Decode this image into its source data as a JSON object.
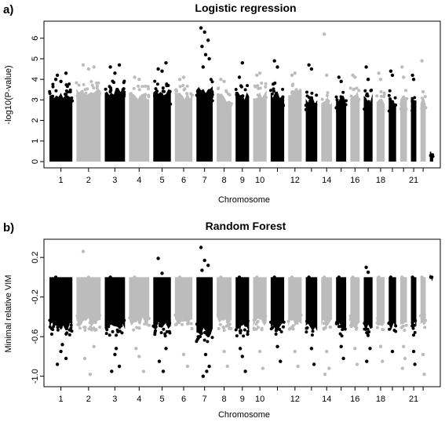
{
  "chart_data": [
    {
      "panel_label": "a)",
      "title": "Logistic regression",
      "type": "scatter",
      "xlabel": "Chromosome",
      "ylabel": "-log10(P-value)",
      "ylim": [
        0,
        6.6
      ],
      "yticks": [
        0,
        1,
        2,
        3,
        4,
        5,
        6
      ],
      "ytick_labels": [
        "0",
        "1",
        "2",
        "3",
        "4",
        "5",
        "6"
      ],
      "xtick_labels": [
        "1",
        "2",
        "3",
        "4",
        "5",
        "6",
        "7",
        "8",
        "9",
        "10",
        "12",
        "14",
        "16",
        "18",
        "21"
      ],
      "grid": false,
      "legend": "none",
      "baseline": 0,
      "colors": {
        "odd_chromosome": "#000000",
        "even_chromosome": "#bcbcbc"
      },
      "chromosomes": [
        {
          "chr": 1,
          "bulk": 3.3,
          "top": [
            4.0,
            3.9,
            4.3,
            4.2
          ]
        },
        {
          "chr": 2,
          "bulk": 3.4,
          "top": [
            4.7,
            4.5,
            4.6
          ]
        },
        {
          "chr": 3,
          "bulk": 3.4,
          "top": [
            4.6,
            4.3,
            4.7
          ]
        },
        {
          "chr": 4,
          "bulk": 3.2,
          "top": [
            4.1,
            4.0
          ]
        },
        {
          "chr": 5,
          "bulk": 3.4,
          "top": [
            4.5,
            4.4,
            4.8
          ]
        },
        {
          "chr": 6,
          "bulk": 3.2,
          "top": [
            4.0,
            4.1
          ]
        },
        {
          "chr": 7,
          "bulk": 3.5,
          "top": [
            6.5,
            6.3,
            5.9,
            5.6,
            5.2,
            5.0,
            4.6
          ]
        },
        {
          "chr": 8,
          "bulk": 3.1,
          "top": [
            4.0,
            3.9
          ]
        },
        {
          "chr": 9,
          "bulk": 3.2,
          "top": [
            4.1,
            4.8
          ]
        },
        {
          "chr": 10,
          "bulk": 3.3,
          "top": [
            4.2,
            4.3
          ]
        },
        {
          "chr": 11,
          "bulk": 3.3,
          "top": [
            4.9,
            4.6
          ]
        },
        {
          "chr": 12,
          "bulk": 3.4,
          "top": [
            4.2,
            4.3
          ]
        },
        {
          "chr": 13,
          "bulk": 3.0,
          "top": [
            4.7,
            4.5
          ]
        },
        {
          "chr": 14,
          "bulk": 3.0,
          "top": [
            6.2,
            4.2
          ]
        },
        {
          "chr": 15,
          "bulk": 3.0,
          "top": [
            4.1,
            3.9
          ]
        },
        {
          "chr": 16,
          "bulk": 3.2,
          "top": [
            4.2,
            4.1
          ]
        },
        {
          "chr": 17,
          "bulk": 3.1,
          "top": [
            4.6,
            4.0
          ]
        },
        {
          "chr": 18,
          "bulk": 3.0,
          "top": [
            4.3,
            4.0
          ]
        },
        {
          "chr": 19,
          "bulk": 3.0,
          "top": [
            4.4,
            4.2
          ]
        },
        {
          "chr": 20,
          "bulk": 3.1,
          "top": [
            4.6,
            4.1
          ]
        },
        {
          "chr": 21,
          "bulk": 3.0,
          "top": [
            4.2,
            4.0
          ]
        },
        {
          "chr": 22,
          "bulk": 2.9,
          "top": [
            4.9,
            3.4
          ]
        },
        {
          "chr": 23,
          "bulk": 0.3,
          "top": []
        }
      ]
    },
    {
      "panel_label": "b)",
      "title": "Random Forest",
      "type": "scatter",
      "xlabel": "Chromosome",
      "ylabel": "Minimal relative VIM",
      "ylim": [
        -1.05,
        0.32
      ],
      "yticks": [
        0.2,
        -0.2,
        -0.6,
        -1.0
      ],
      "ytick_labels": [
        "0.2",
        "-0.2",
        "-0.6",
        "-1.0"
      ],
      "xtick_labels": [
        "1",
        "2",
        "3",
        "4",
        "5",
        "6",
        "7",
        "8",
        "9",
        "10",
        "12",
        "14",
        "16",
        "18",
        "21"
      ],
      "grid": false,
      "legend": "none",
      "baseline": 0,
      "colors": {
        "odd_chromosome": "#000000",
        "even_chromosome": "#bcbcbc"
      },
      "chromosomes": [
        {
          "chr": 1,
          "bulk": -0.5,
          "top": [
            0.0
          ],
          "outliers": [
            -0.75,
            -0.82,
            -0.88,
            -0.68
          ]
        },
        {
          "chr": 2,
          "bulk": -0.45,
          "top": [
            0.26,
            0.0
          ],
          "outliers": [
            -0.7,
            -0.82,
            -0.98
          ]
        },
        {
          "chr": 3,
          "bulk": -0.5,
          "top": [
            0.0
          ],
          "outliers": [
            -0.78,
            -0.9,
            -0.95,
            -0.72
          ]
        },
        {
          "chr": 4,
          "bulk": -0.45,
          "top": [
            0.0
          ],
          "outliers": [
            -0.8,
            -0.95,
            -0.72
          ]
        },
        {
          "chr": 5,
          "bulk": -0.5,
          "top": [
            0.19,
            0.04
          ],
          "outliers": [
            -0.72,
            -0.85,
            -0.95
          ]
        },
        {
          "chr": 6,
          "bulk": -0.45,
          "top": [
            0.0
          ],
          "outliers": [
            -0.78,
            -0.9
          ]
        },
        {
          "chr": 7,
          "bulk": -0.55,
          "top": [
            0.3,
            0.17,
            0.12,
            0.07
          ],
          "outliers": [
            -0.78,
            -0.9,
            -1.0,
            -0.95
          ]
        },
        {
          "chr": 8,
          "bulk": -0.45,
          "top": [
            0.0
          ],
          "outliers": [
            -0.75,
            -0.9
          ]
        },
        {
          "chr": 9,
          "bulk": -0.5,
          "top": [
            0.0
          ],
          "outliers": [
            -0.8,
            -0.95,
            -0.72
          ]
        },
        {
          "chr": 10,
          "bulk": -0.45,
          "top": [
            0.0
          ],
          "outliers": [
            -0.75,
            -0.92
          ]
        },
        {
          "chr": 11,
          "bulk": -0.5,
          "top": [
            0.0
          ],
          "outliers": [
            -0.7,
            -0.85
          ]
        },
        {
          "chr": 12,
          "bulk": -0.45,
          "top": [
            0.0
          ],
          "outliers": [
            -0.75,
            -0.9
          ]
        },
        {
          "chr": 13,
          "bulk": -0.5,
          "top": [
            0.0
          ],
          "outliers": [
            -0.72,
            -0.88
          ]
        },
        {
          "chr": 14,
          "bulk": -0.45,
          "top": [
            0.0
          ],
          "outliers": [
            -0.75,
            -0.92,
            -0.98
          ]
        },
        {
          "chr": 15,
          "bulk": -0.5,
          "top": [
            0.0
          ],
          "outliers": [
            -0.7,
            -0.82
          ]
        },
        {
          "chr": 16,
          "bulk": -0.45,
          "top": [
            0.0
          ],
          "outliers": [
            -0.72,
            -0.88
          ]
        },
        {
          "chr": 17,
          "bulk": -0.5,
          "top": [
            0.1,
            0.05
          ],
          "outliers": [
            -0.72,
            -0.85
          ]
        },
        {
          "chr": 18,
          "bulk": -0.45,
          "top": [
            0.0
          ],
          "outliers": [
            -0.7,
            -0.85
          ]
        },
        {
          "chr": 19,
          "bulk": -0.5,
          "top": [
            0.0
          ],
          "outliers": [
            -0.75
          ]
        },
        {
          "chr": 20,
          "bulk": -0.45,
          "top": [
            0.0
          ],
          "outliers": [
            -0.7,
            -0.82,
            -0.92
          ]
        },
        {
          "chr": 21,
          "bulk": -0.5,
          "top": [
            0.0
          ],
          "outliers": [
            -0.75,
            -0.88
          ]
        },
        {
          "chr": 22,
          "bulk": -0.45,
          "top": [
            0.0
          ],
          "outliers": [
            -0.78,
            -0.98
          ]
        },
        {
          "chr": 23,
          "bulk": 0.0,
          "top": [
            0.0
          ],
          "outliers": []
        }
      ]
    }
  ]
}
